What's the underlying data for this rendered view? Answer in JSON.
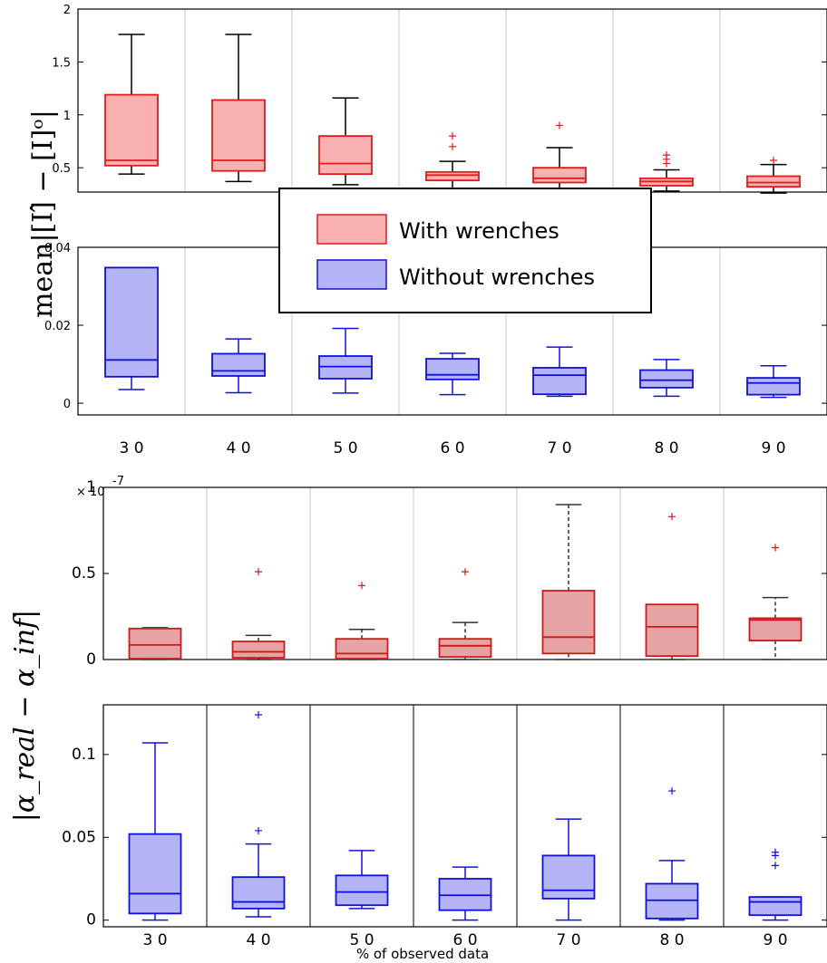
{
  "chart_data": [
    {
      "type": "box",
      "series": [
        {
          "name": "With wrenches",
          "color": "#e31a1c",
          "fill": "#f9b0b0"
        }
      ],
      "categories": [
        "3 0",
        "4 0",
        "5 0",
        "6 0",
        "7 0",
        "8 0",
        "9 0"
      ],
      "boxes": [
        {
          "whislo": 0.44,
          "q1": 0.52,
          "med": 0.57,
          "q3": 1.19,
          "whishi": 1.76,
          "fliers": []
        },
        {
          "whislo": 0.37,
          "q1": 0.47,
          "med": 0.57,
          "q3": 1.14,
          "whishi": 1.76,
          "fliers": []
        },
        {
          "whislo": 0.34,
          "q1": 0.44,
          "med": 0.54,
          "q3": 0.8,
          "whishi": 1.16,
          "fliers": []
        },
        {
          "whislo": 0.28,
          "q1": 0.38,
          "med": 0.43,
          "q3": 0.46,
          "whishi": 0.56,
          "fliers": [
            0.7,
            0.8
          ]
        },
        {
          "whislo": 0.3,
          "q1": 0.36,
          "med": 0.4,
          "q3": 0.5,
          "whishi": 0.69,
          "fliers": [
            0.9
          ]
        },
        {
          "whislo": 0.28,
          "q1": 0.33,
          "med": 0.37,
          "q3": 0.4,
          "whishi": 0.48,
          "fliers": [
            0.54,
            0.58,
            0.62
          ]
        },
        {
          "whislo": 0.26,
          "q1": 0.32,
          "med": 0.36,
          "q3": 0.42,
          "whishi": 0.53,
          "fliers": [
            0.57
          ]
        }
      ],
      "yticks": [
        "0.5",
        "1",
        "1.5",
        "2"
      ],
      "ylim": [
        0.27,
        2.0
      ]
    },
    {
      "type": "box",
      "series": [
        {
          "name": "Without wrenches",
          "color": "#1010dd",
          "fill": "#b4b4f6"
        }
      ],
      "categories": [
        "3 0",
        "4 0",
        "5 0",
        "6 0",
        "7 0",
        "8 0",
        "9 0"
      ],
      "boxes": [
        {
          "whislo": 0.0035,
          "q1": 0.0068,
          "med": 0.0111,
          "q3": 0.0348,
          "whishi": 0.0348,
          "fliers": []
        },
        {
          "whislo": 0.0027,
          "q1": 0.007,
          "med": 0.0083,
          "q3": 0.0127,
          "whishi": 0.0165,
          "fliers": []
        },
        {
          "whislo": 0.0026,
          "q1": 0.0063,
          "med": 0.0094,
          "q3": 0.0121,
          "whishi": 0.0192,
          "fliers": []
        },
        {
          "whislo": 0.0022,
          "q1": 0.0061,
          "med": 0.0073,
          "q3": 0.0114,
          "whishi": 0.0128,
          "fliers": []
        },
        {
          "whislo": 0.0018,
          "q1": 0.0023,
          "med": 0.0072,
          "q3": 0.0091,
          "whishi": 0.0144,
          "fliers": []
        },
        {
          "whislo": 0.0018,
          "q1": 0.004,
          "med": 0.0059,
          "q3": 0.0085,
          "whishi": 0.0112,
          "fliers": []
        },
        {
          "whislo": 0.0015,
          "q1": 0.0022,
          "med": 0.0052,
          "q3": 0.0065,
          "whishi": 0.0096,
          "fliers": []
        }
      ],
      "yticks": [
        "0",
        "0.02",
        "0.04"
      ],
      "ylim": [
        -0.003,
        0.04
      ]
    },
    {
      "type": "box",
      "series": [
        {
          "name": "With wrenches",
          "color": "#cc1a1a",
          "fill": "#e6a3a3"
        }
      ],
      "categories": [
        "3 0",
        "4 0",
        "5 0",
        "6 0",
        "7 0",
        "8 0",
        "9 0"
      ],
      "boxes": [
        {
          "whislo": 0.0,
          "q1": 0.005,
          "med": 0.085,
          "q3": 0.18,
          "whishi": 0.185,
          "fliers": []
        },
        {
          "whislo": 0.0,
          "q1": 0.01,
          "med": 0.045,
          "q3": 0.105,
          "whishi": 0.14,
          "fliers": [
            0.51
          ]
        },
        {
          "whislo": 0.0,
          "q1": 0.005,
          "med": 0.035,
          "q3": 0.12,
          "whishi": 0.175,
          "fliers": [
            0.43
          ]
        },
        {
          "whislo": 0.0,
          "q1": 0.015,
          "med": 0.08,
          "q3": 0.12,
          "whishi": 0.215,
          "fliers": [
            0.51
          ]
        },
        {
          "whislo": 0.0,
          "q1": 0.035,
          "med": 0.13,
          "q3": 0.4,
          "whishi": 0.9,
          "fliers": []
        },
        {
          "whislo": 0.0,
          "q1": 0.02,
          "med": 0.19,
          "q3": 0.32,
          "whishi": 0.32,
          "fliers": [
            0.83
          ]
        },
        {
          "whislo": 0.0,
          "q1": 0.11,
          "med": 0.23,
          "q3": 0.24,
          "whishi": 0.36,
          "fliers": [
            0.65
          ]
        }
      ],
      "yticks": [
        "0",
        "0.5",
        "1"
      ],
      "ylim": [
        0,
        1.0
      ],
      "exponent_label": "× 10",
      "exponent_power": "-7"
    },
    {
      "type": "box",
      "series": [
        {
          "name": "Without wrenches",
          "color": "#1010dd",
          "fill": "#b4b4f6"
        }
      ],
      "categories": [
        "3 0",
        "4 0",
        "5 0",
        "6 0",
        "7 0",
        "8 0",
        "9 0"
      ],
      "boxes": [
        {
          "whislo": 0.0,
          "q1": 0.004,
          "med": 0.016,
          "q3": 0.052,
          "whishi": 0.107,
          "fliers": []
        },
        {
          "whislo": 0.002,
          "q1": 0.007,
          "med": 0.011,
          "q3": 0.026,
          "whishi": 0.046,
          "fliers": [
            0.054,
            0.124
          ]
        },
        {
          "whislo": 0.007,
          "q1": 0.009,
          "med": 0.017,
          "q3": 0.027,
          "whishi": 0.042,
          "fliers": []
        },
        {
          "whislo": 0.0,
          "q1": 0.006,
          "med": 0.015,
          "q3": 0.025,
          "whishi": 0.032,
          "fliers": []
        },
        {
          "whislo": 0.0,
          "q1": 0.013,
          "med": 0.018,
          "q3": 0.039,
          "whishi": 0.061,
          "fliers": []
        },
        {
          "whislo": 0.0,
          "q1": 0.001,
          "med": 0.012,
          "q3": 0.022,
          "whishi": 0.036,
          "fliers": [
            0.078
          ]
        },
        {
          "whislo": 0.0,
          "q1": 0.003,
          "med": 0.011,
          "q3": 0.014,
          "whishi": 0.014,
          "fliers": [
            0.033,
            0.039,
            0.041
          ]
        }
      ],
      "yticks": [
        "0",
        "0.05",
        "0.1"
      ],
      "ylim": [
        -0.004,
        0.13
      ],
      "xlabel": "% of observed data"
    }
  ],
  "labels": {
    "top_ylabel": "mean|[I]̂ − [I]ᵒ|",
    "bottom_ylabel": "|α_real − α_inf|",
    "xlabel": "% of observed data"
  },
  "legend": {
    "entries": [
      {
        "label": "With wrenches",
        "color": "#e31a1c",
        "fill": "#f9b0b0"
      },
      {
        "label": "Without wrenches",
        "color": "#1010dd",
        "fill": "#b4b4f6"
      }
    ]
  }
}
